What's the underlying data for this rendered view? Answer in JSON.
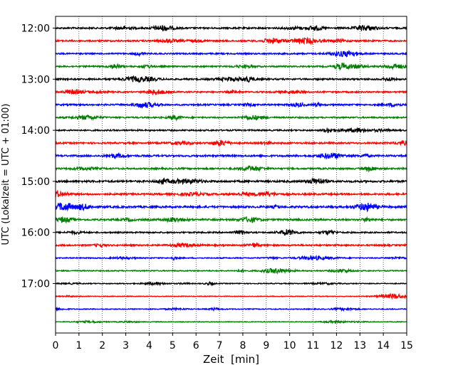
{
  "chart_data": {
    "type": "line",
    "title": "",
    "xlabel": "Zeit  [min]",
    "ylabel": "UTC (Lokalzeit = UTC + 01:00)",
    "xlim": [
      0,
      15
    ],
    "x_ticks": [
      "0",
      "1",
      "2",
      "3",
      "4",
      "5",
      "6",
      "7",
      "8",
      "9",
      "10",
      "11",
      "12",
      "13",
      "14",
      "15"
    ],
    "y_ticks": [
      "12:00",
      "13:00",
      "14:00",
      "15:00",
      "16:00",
      "17:00"
    ],
    "grid": "vertical dotted lines at each minute",
    "legend": "none",
    "row_interval_min": 15,
    "start_time": "12:00",
    "end_time": "17:45",
    "colors": [
      "#000000",
      "#ff0000",
      "#0000ff",
      "#008000"
    ],
    "color_cycle": [
      "black",
      "red",
      "blue",
      "green"
    ],
    "series": [
      {
        "start": "12:00",
        "color": "#000000",
        "amplitude": 0.9
      },
      {
        "start": "12:15",
        "color": "#ff0000",
        "amplitude": 0.9
      },
      {
        "start": "12:30",
        "color": "#0000ff",
        "amplitude": 0.8
      },
      {
        "start": "12:45",
        "color": "#008000",
        "amplitude": 0.8
      },
      {
        "start": "13:00",
        "color": "#000000",
        "amplitude": 0.9
      },
      {
        "start": "13:15",
        "color": "#ff0000",
        "amplitude": 0.8
      },
      {
        "start": "13:30",
        "color": "#0000ff",
        "amplitude": 0.9
      },
      {
        "start": "13:45",
        "color": "#008000",
        "amplitude": 0.8
      },
      {
        "start": "14:00",
        "color": "#000000",
        "amplitude": 0.8
      },
      {
        "start": "14:15",
        "color": "#ff0000",
        "amplitude": 0.9
      },
      {
        "start": "14:30",
        "color": "#0000ff",
        "amplitude": 1.0
      },
      {
        "start": "14:45",
        "color": "#008000",
        "amplitude": 0.9
      },
      {
        "start": "15:00",
        "color": "#000000",
        "amplitude": 1.1
      },
      {
        "start": "15:15",
        "color": "#ff0000",
        "amplitude": 1.0
      },
      {
        "start": "15:30",
        "color": "#0000ff",
        "amplitude": 1.1
      },
      {
        "start": "15:45",
        "color": "#008000",
        "amplitude": 1.0
      },
      {
        "start": "16:00",
        "color": "#000000",
        "amplitude": 0.8
      },
      {
        "start": "16:15",
        "color": "#ff0000",
        "amplitude": 0.9
      },
      {
        "start": "16:30",
        "color": "#0000ff",
        "amplitude": 0.6
      },
      {
        "start": "16:45",
        "color": "#008000",
        "amplitude": 0.6
      },
      {
        "start": "17:00",
        "color": "#000000",
        "amplitude": 0.5
      },
      {
        "start": "17:15",
        "color": "#ff0000",
        "amplitude": 0.4
      },
      {
        "start": "17:30",
        "color": "#0000ff",
        "amplitude": 0.5
      },
      {
        "start": "17:45",
        "color": "#008000",
        "amplitude": 0.4
      }
    ]
  }
}
